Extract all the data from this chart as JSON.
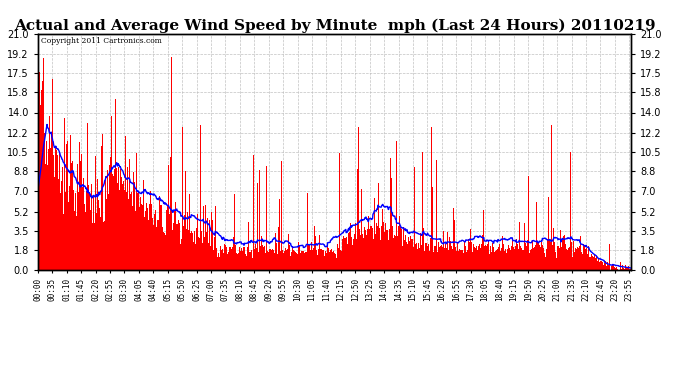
{
  "title": "Actual and Average Wind Speed by Minute  mph (Last 24 Hours) 20110219",
  "copyright_text": "Copyright 2011 Cartronics.com",
  "yticks": [
    0.0,
    1.8,
    3.5,
    5.2,
    7.0,
    8.8,
    10.5,
    12.2,
    14.0,
    15.8,
    17.5,
    19.2,
    21.0
  ],
  "ylim": [
    0.0,
    21.0
  ],
  "bar_color": "#ff0000",
  "line_color": "#0000ff",
  "background_color": "#ffffff",
  "grid_color": "#bbbbbb",
  "title_fontsize": 11,
  "tick_fontsize": 7,
  "n_points": 1440,
  "seed": 1234,
  "avg_window": 45
}
